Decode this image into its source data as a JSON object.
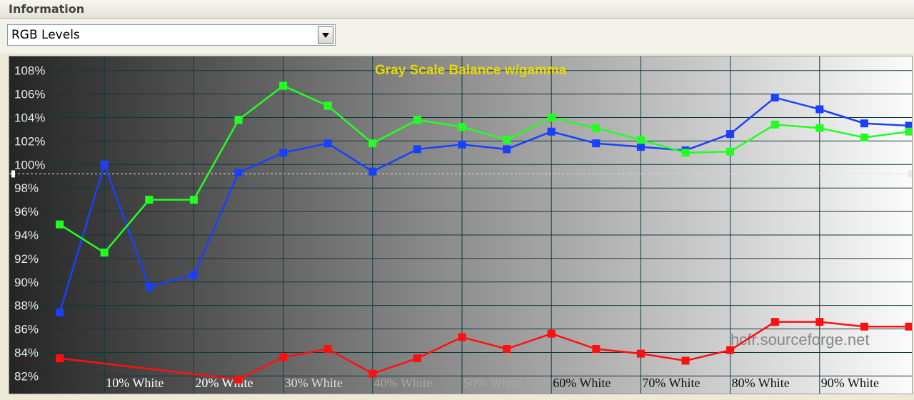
{
  "panel": {
    "title": "Information"
  },
  "view_select": {
    "value": "RGB Levels"
  },
  "watermark": "hcfr.sourceforge.net",
  "chart_data": {
    "type": "line",
    "title": "Gray Scale Balance w/gamma",
    "categories": [
      "",
      "10% White",
      "20% White",
      "30% White",
      "40% White",
      "50% White",
      "60% White",
      "70% White",
      "80% White",
      "90% White",
      ""
    ],
    "ytick_labels": [
      "82%",
      "84%",
      "86%",
      "88%",
      "90%",
      "92%",
      "94%",
      "96%",
      "98%",
      "100%",
      "102%",
      "104%",
      "106%",
      "108%"
    ],
    "ylim": [
      80.5,
      109.2
    ],
    "reference_line": 99.2,
    "grid": true,
    "series": [
      {
        "color": "#ff1010",
        "x": [
          0.5,
          2.5,
          3,
          3.5,
          4,
          4.5,
          5,
          5.5,
          6,
          6.5,
          7,
          7.5,
          8,
          8.5,
          9,
          9.5,
          10
        ],
        "y": [
          83.5,
          81.7,
          83.6,
          84.3,
          82.2,
          83.5,
          85.3,
          84.3,
          85.6,
          84.3,
          83.9,
          83.3,
          84.2,
          86.6,
          86.6,
          86.2,
          86.2
        ]
      },
      {
        "color": "#1a40ff",
        "x": [
          0.5,
          1,
          1.5,
          2,
          2.5,
          3,
          3.5,
          4,
          4.5,
          5,
          5.5,
          6,
          6.5,
          7,
          7.5,
          8,
          8.5,
          9,
          9.5,
          10
        ],
        "y": [
          87.4,
          100.0,
          89.6,
          90.6,
          99.3,
          101.0,
          101.8,
          99.4,
          101.3,
          101.7,
          101.3,
          102.8,
          101.8,
          101.5,
          101.2,
          102.6,
          105.7,
          104.7,
          103.5,
          103.3
        ]
      },
      {
        "color": "#22ff22",
        "x": [
          0.5,
          1,
          1.5,
          2,
          2.5,
          3,
          3.5,
          4,
          4.5,
          5,
          5.5,
          6,
          6.5,
          7,
          7.5,
          8,
          8.5,
          9,
          9.5,
          10
        ],
        "y": [
          94.9,
          92.5,
          97.0,
          97.0,
          103.8,
          106.7,
          105.0,
          101.8,
          103.8,
          103.2,
          102.1,
          104.0,
          103.1,
          102.1,
          101.0,
          101.1,
          103.4,
          103.1,
          102.3,
          102.8
        ]
      }
    ]
  }
}
